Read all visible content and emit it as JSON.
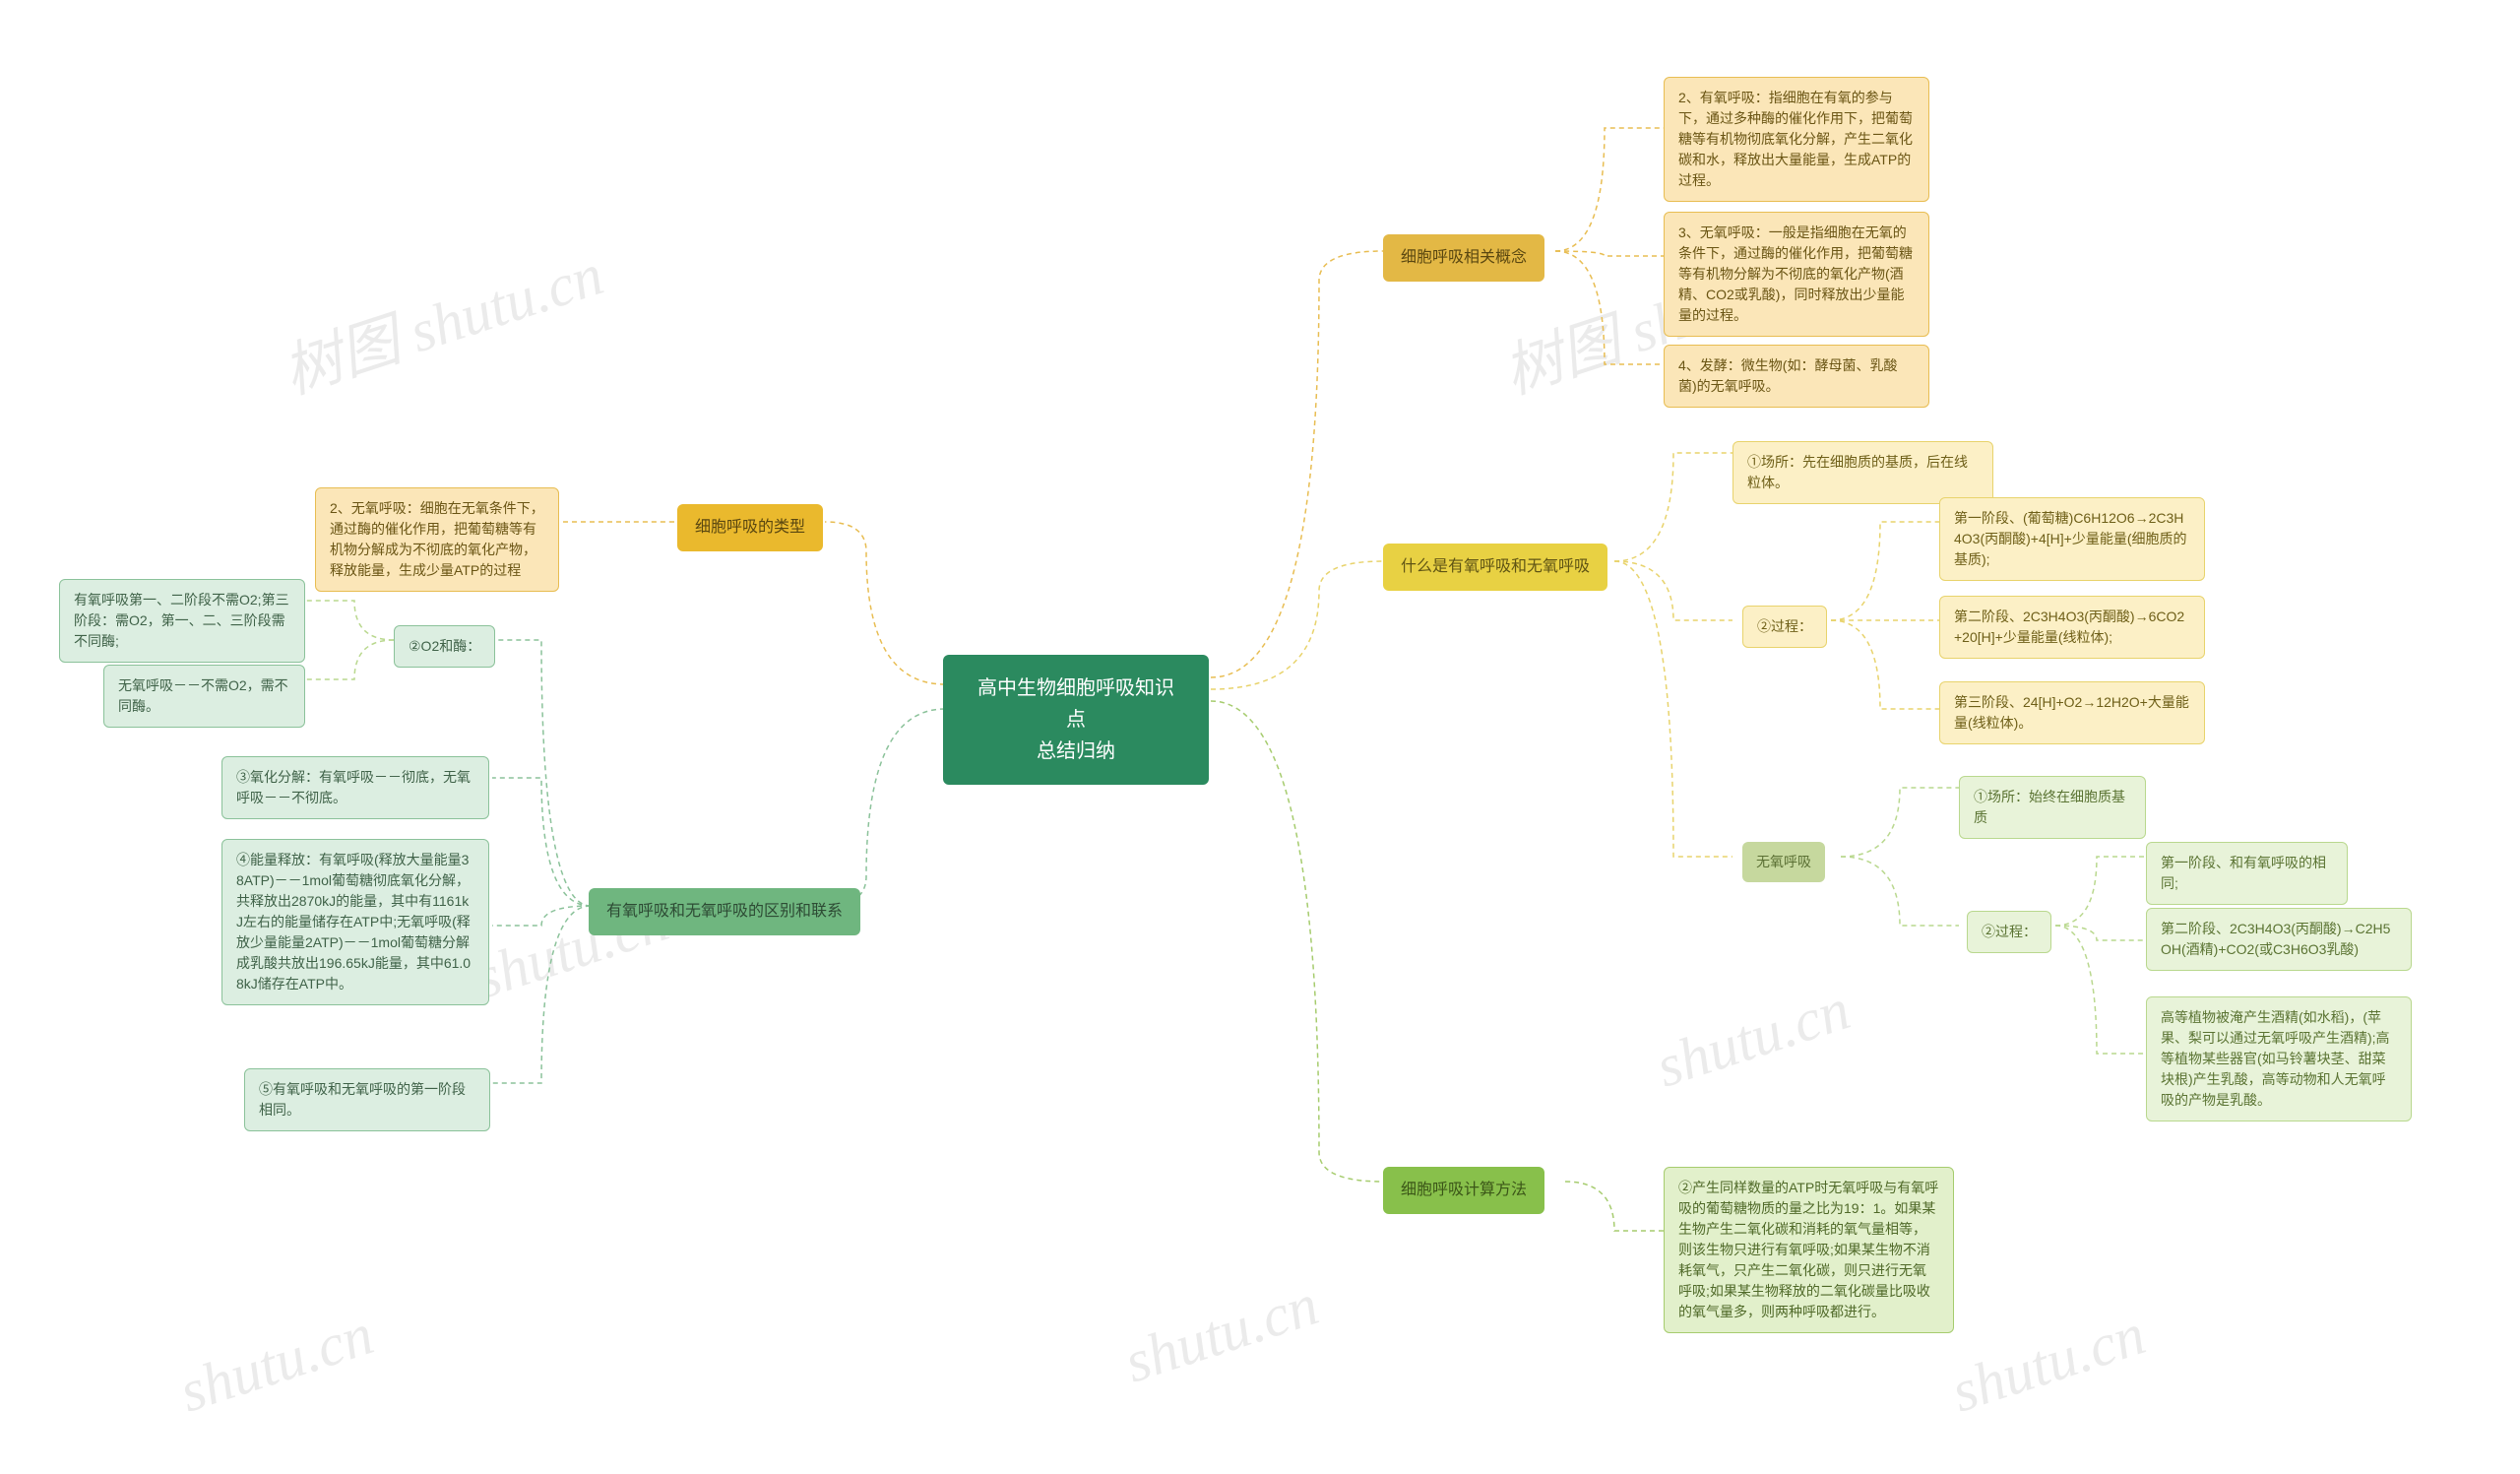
{
  "watermarks": [
    "树图 shutu.cn",
    "shutu.cn",
    "shutu.cn",
    "树图 shutu.cn",
    "shutu.cn",
    "shutu.cn",
    "shutu.cn"
  ],
  "central": {
    "text": "高中生物细胞呼吸知识点\n总结归纳"
  },
  "left": {
    "branch1": {
      "title": "细胞呼吸的类型",
      "leaf1": "2、无氧呼吸：细胞在无氧条件下，通过酶的催化作用，把葡萄糖等有机物分解成为不彻底的氧化产物，释放能量，生成少量ATP的过程"
    },
    "branch2": {
      "title": "有氧呼吸和无氧呼吸的区别和联系",
      "sub_o2": "②O2和酶：",
      "sub_o2_a": "有氧呼吸第一、二阶段不需O2;第三阶段：需O2，第一、二、三阶段需不同酶;",
      "sub_o2_b": "无氧呼吸－－不需O2，需不同酶。",
      "leaf3": "③氧化分解：有氧呼吸－－彻底，无氧呼吸－－不彻底。",
      "leaf4": "④能量释放：有氧呼吸(释放大量能量38ATP)－－1mol葡萄糖彻底氧化分解，共释放出2870kJ的能量，其中有1161kJ左右的能量储存在ATP中;无氧呼吸(释放少量能量2ATP)－－1mol葡萄糖分解成乳酸共放出196.65kJ能量，其中61.08kJ储存在ATP中。",
      "leaf5": "⑤有氧呼吸和无氧呼吸的第一阶段相同。"
    }
  },
  "right": {
    "branch1": {
      "title": "细胞呼吸相关概念",
      "leaf2": "2、有氧呼吸：指细胞在有氧的参与下，通过多种酶的催化作用下，把葡萄糖等有机物彻底氧化分解，产生二氧化碳和水，释放出大量能量，生成ATP的过程。",
      "leaf3": "3、无氧呼吸：一般是指细胞在无氧的条件下，通过酶的催化作用，把葡萄糖等有机物分解为不彻底的氧化产物(酒精、CO2或乳酸)，同时释放出少量能量的过程。",
      "leaf4": "4、发酵：微生物(如：酵母菌、乳酸菌)的无氧呼吸。"
    },
    "branch2": {
      "title": "什么是有氧呼吸和无氧呼吸",
      "aero_place": "①场所：先在细胞质的基质，后在线粒体。",
      "aero_proc": "②过程：",
      "aero_s1": "第一阶段、(葡萄糖)C6H12O6→2C3H4O3(丙酮酸)+4[H]+少量能量(细胞质的基质);",
      "aero_s2": "第二阶段、2C3H4O3(丙酮酸)→6CO2+20[H]+少量能量(线粒体);",
      "aero_s3": "第三阶段、24[H]+O2→12H2O+大量能量(线粒体)。",
      "anaero_title": "无氧呼吸",
      "anaero_place": "①场所：始终在细胞质基质",
      "anaero_proc": "②过程：",
      "anaero_s1": "第一阶段、和有氧呼吸的相同;",
      "anaero_s2": "第二阶段、2C3H4O3(丙酮酸)→C2H5OH(酒精)+CO2(或C3H6O3乳酸)",
      "anaero_s3": "高等植物被淹产生酒精(如水稻)，(苹果、梨可以通过无氧呼吸产生酒精);高等植物某些器官(如马铃薯块茎、甜菜块根)产生乳酸，高等动物和人无氧呼吸的产物是乳酸。"
    },
    "branch3": {
      "title": "细胞呼吸计算方法",
      "leaf2": "②产生同样数量的ATP时无氧呼吸与有氧呼吸的葡萄糖物质的量之比为19：1。如果某生物产生二氧化碳和消耗的氧气量相等，则该生物只进行有氧呼吸;如果某生物不消耗氧气，只产生二氧化碳，则只进行无氧呼吸;如果某生物释放的二氧化碳量比吸收的氧气量多，则两种呼吸都进行。"
    }
  }
}
